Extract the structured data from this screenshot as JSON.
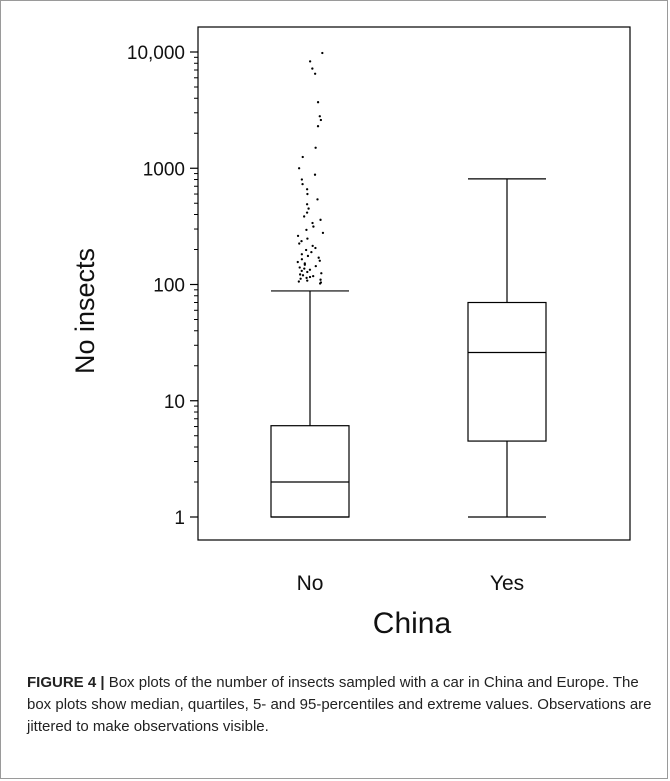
{
  "chart_data": {
    "type": "box",
    "xlabel": "China",
    "ylabel": "No insects",
    "yscale": "log",
    "ylim": [
      1,
      10000
    ],
    "yticks": [
      {
        "value": 1,
        "label": "1"
      },
      {
        "value": 10,
        "label": "10"
      },
      {
        "value": 100,
        "label": "100"
      },
      {
        "value": 1000,
        "label": "1000"
      },
      {
        "value": 10000,
        "label": "10,000"
      }
    ],
    "categories": [
      "No",
      "Yes"
    ],
    "boxes": [
      {
        "category": "No",
        "whisker_low": 1,
        "q1": 1,
        "median": 2,
        "q3": 6.1,
        "whisker_high": 88,
        "outliers": [
          102,
          104,
          106,
          108,
          110,
          112,
          114,
          116,
          118,
          120,
          122,
          125,
          128,
          131,
          134,
          137,
          140,
          144,
          148,
          152,
          156,
          160,
          165,
          170,
          176,
          182,
          190,
          198,
          206,
          215,
          225,
          236,
          248,
          262,
          278,
          295,
          315,
          338,
          360,
          385,
          415,
          450,
          490,
          540,
          600,
          660,
          730,
          800,
          880,
          1000,
          1250,
          1500,
          2300,
          2600,
          2800,
          3700,
          6500,
          7200,
          8300,
          9800
        ]
      },
      {
        "category": "Yes",
        "whisker_low": 1,
        "q1": 4.5,
        "median": 26,
        "q3": 70,
        "whisker_high": 810,
        "outliers": []
      }
    ]
  },
  "caption": {
    "label": "FIGURE 4 |",
    "text": " Box plots of the number of insects sampled with a car in China and Europe. The box plots show median, quartiles, 5- and 95-percentiles and extreme values. Observations are jittered to make observations visible."
  }
}
